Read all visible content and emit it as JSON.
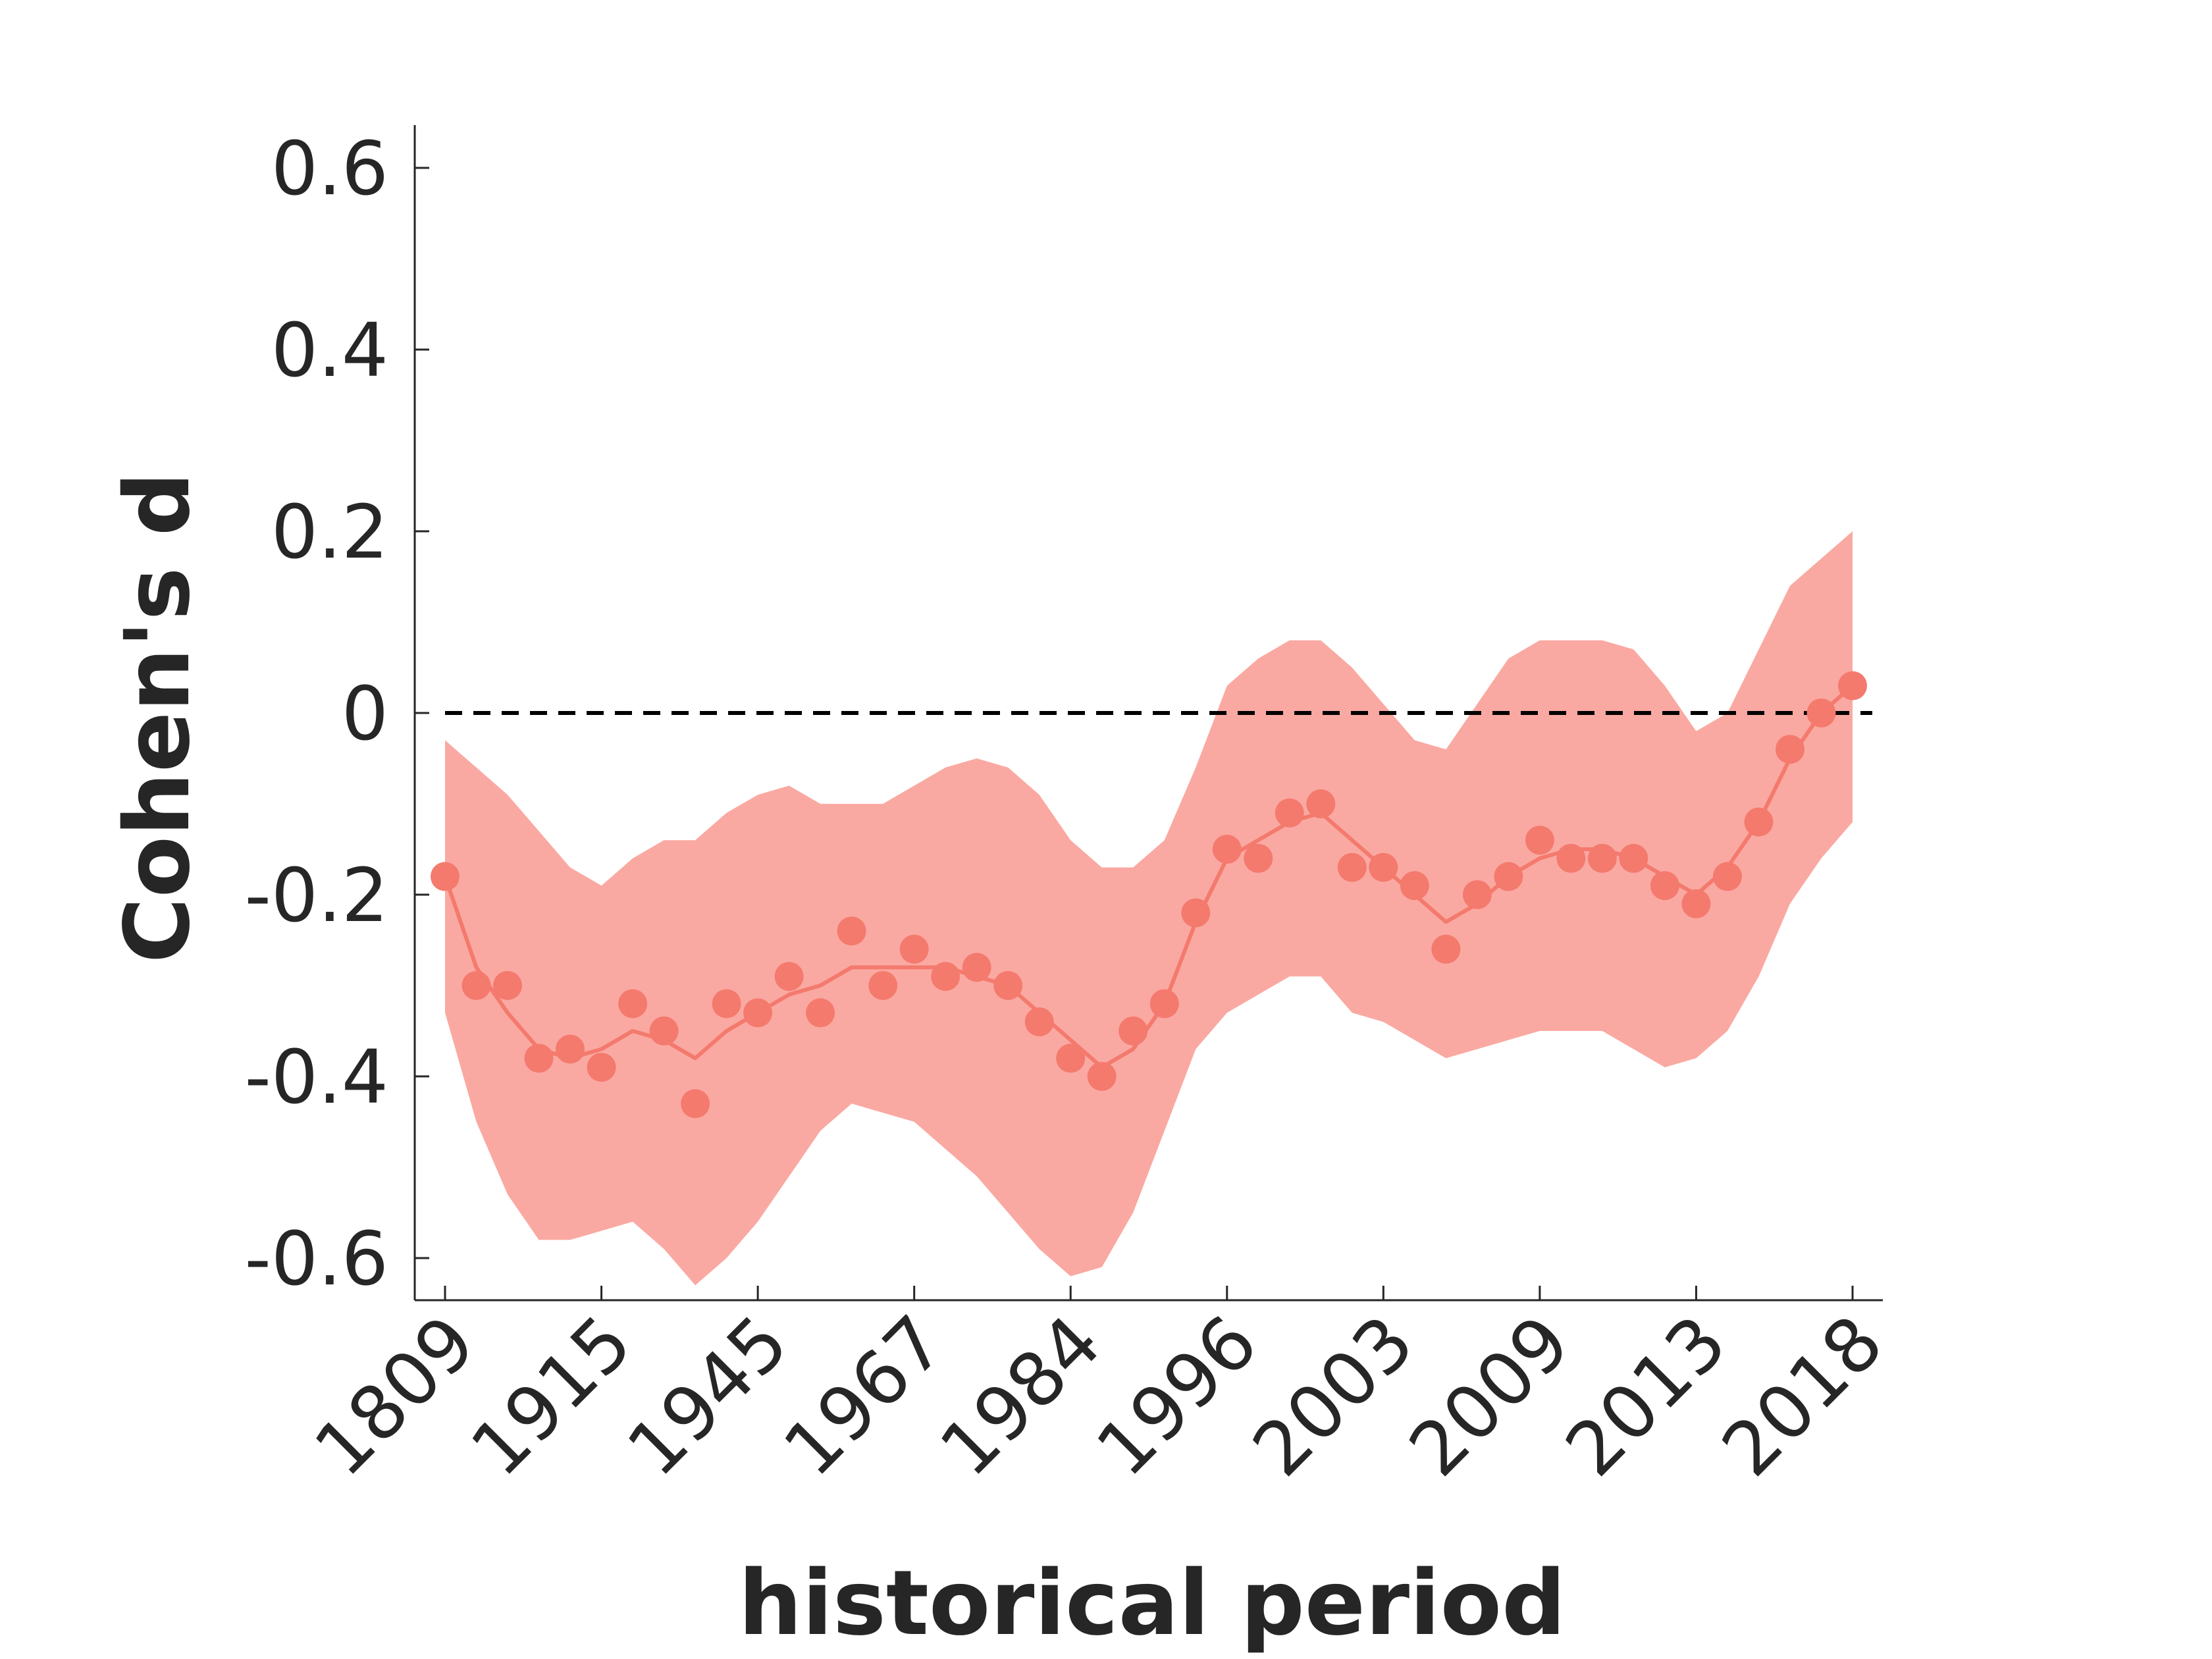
{
  "chart_data": {
    "type": "line",
    "title": "",
    "xlabel": "historical period",
    "ylabel": "Cohen's d",
    "ylim": [
      -0.65,
      0.65
    ],
    "yticks": [
      0.6,
      0.4,
      0.2,
      0,
      -0.2,
      -0.4,
      -0.6
    ],
    "ytick_labels": [
      "0.6",
      "0.4",
      "0.2",
      "0",
      "-0.2",
      "-0.4",
      "-0.6"
    ],
    "xtick_labels": [
      "1809",
      "1915",
      "1945",
      "1967",
      "1984",
      "1996",
      "2003",
      "2009",
      "2013",
      "2018"
    ],
    "reference_line": {
      "y": 0,
      "style": "dashed",
      "color": "#000000"
    },
    "grid": false,
    "colors": {
      "line": "#F47A6E",
      "band": "#FAA9A2",
      "points": "#F47A6E",
      "axis": "#262626"
    },
    "series": [
      {
        "points": [
          -0.18,
          -0.3,
          -0.3,
          -0.38,
          -0.37,
          -0.39,
          -0.32,
          -0.35,
          -0.43,
          -0.32,
          -0.33,
          -0.29,
          -0.33,
          -0.24,
          -0.3,
          -0.26,
          -0.29,
          -0.28,
          -0.3,
          -0.34,
          -0.38,
          -0.4,
          -0.35,
          -0.32,
          -0.22,
          -0.15,
          -0.16,
          -0.11,
          -0.1,
          -0.17,
          -0.17,
          -0.19,
          -0.26,
          -0.2,
          -0.18,
          -0.14,
          -0.16,
          -0.16,
          -0.16,
          -0.19,
          -0.21,
          -0.18,
          -0.12,
          -0.04,
          0.0,
          0.03
        ],
        "smooth": [
          -0.18,
          -0.28,
          -0.33,
          -0.37,
          -0.38,
          -0.37,
          -0.35,
          -0.36,
          -0.38,
          -0.35,
          -0.33,
          -0.31,
          -0.3,
          -0.28,
          -0.28,
          -0.28,
          -0.28,
          -0.29,
          -0.3,
          -0.33,
          -0.36,
          -0.39,
          -0.37,
          -0.32,
          -0.23,
          -0.16,
          -0.14,
          -0.12,
          -0.11,
          -0.14,
          -0.17,
          -0.2,
          -0.23,
          -0.21,
          -0.18,
          -0.16,
          -0.15,
          -0.15,
          -0.16,
          -0.18,
          -0.2,
          -0.17,
          -0.12,
          -0.05,
          0.0,
          0.03
        ],
        "upper": [
          -0.03,
          -0.06,
          -0.09,
          -0.13,
          -0.17,
          -0.19,
          -0.16,
          -0.14,
          -0.14,
          -0.11,
          -0.09,
          -0.08,
          -0.1,
          -0.1,
          -0.1,
          -0.08,
          -0.06,
          -0.05,
          -0.06,
          -0.09,
          -0.14,
          -0.17,
          -0.17,
          -0.14,
          -0.06,
          0.03,
          0.06,
          0.08,
          0.08,
          0.05,
          0.01,
          -0.03,
          -0.04,
          0.01,
          0.06,
          0.08,
          0.08,
          0.08,
          0.07,
          0.03,
          -0.02,
          0.0,
          0.07,
          0.14,
          0.17,
          0.2
        ],
        "lower": [
          -0.33,
          -0.45,
          -0.53,
          -0.58,
          -0.58,
          -0.57,
          -0.56,
          -0.59,
          -0.63,
          -0.6,
          -0.56,
          -0.51,
          -0.46,
          -0.43,
          -0.44,
          -0.45,
          -0.48,
          -0.51,
          -0.55,
          -0.59,
          -0.62,
          -0.61,
          -0.55,
          -0.46,
          -0.37,
          -0.33,
          -0.31,
          -0.29,
          -0.29,
          -0.33,
          -0.34,
          -0.36,
          -0.38,
          -0.37,
          -0.36,
          -0.35,
          -0.35,
          -0.35,
          -0.37,
          -0.39,
          -0.38,
          -0.35,
          -0.29,
          -0.21,
          -0.16,
          -0.12
        ]
      }
    ]
  }
}
